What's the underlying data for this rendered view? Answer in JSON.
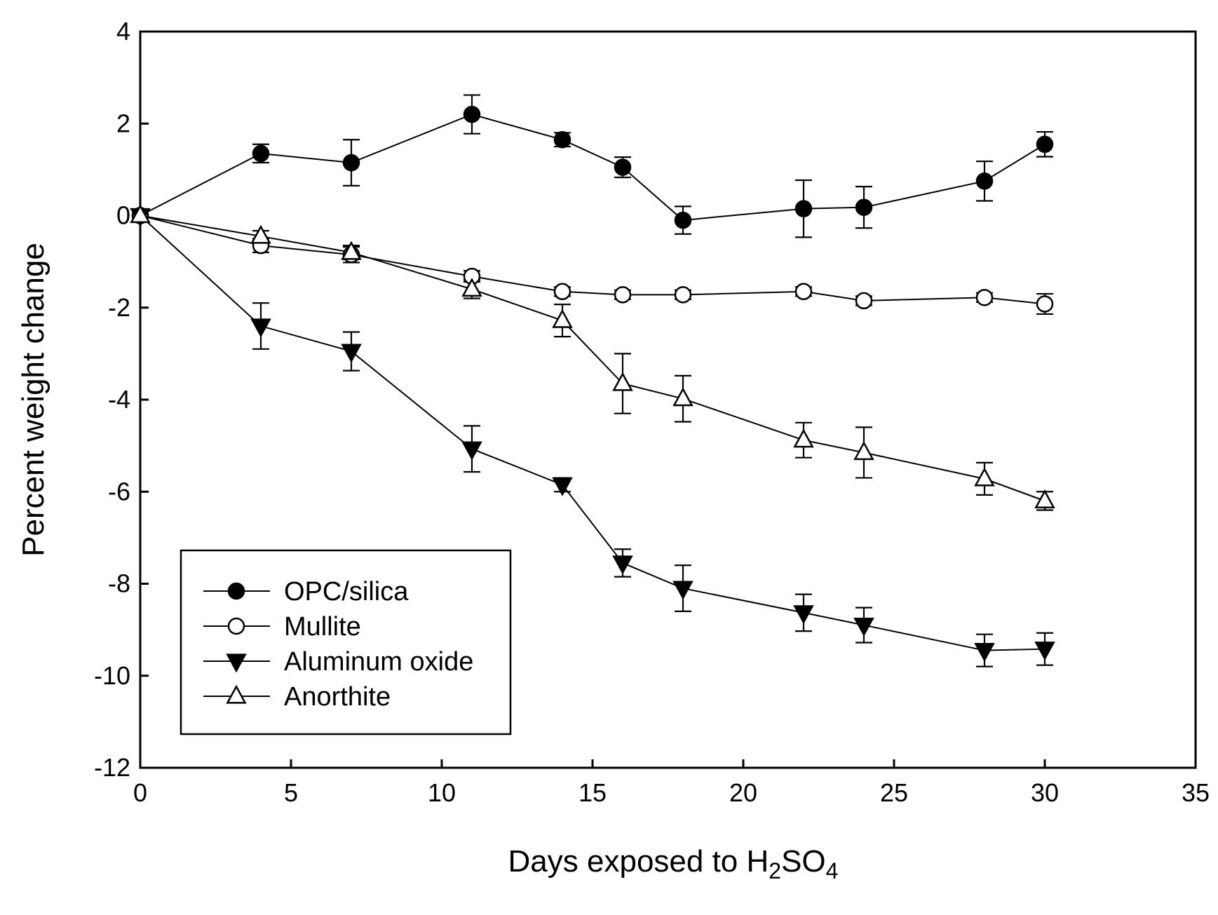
{
  "chart_data": {
    "type": "line",
    "title": "",
    "xlabel": {
      "main": "Days exposed to H",
      "sub1": "2",
      "mid": "SO",
      "sub2": "4"
    },
    "ylabel": "Percent weight change",
    "xlim": [
      0,
      35
    ],
    "ylim": [
      -12,
      4
    ],
    "xticks": [
      0,
      5,
      10,
      15,
      20,
      25,
      30,
      35
    ],
    "yticks": [
      4,
      2,
      0,
      -2,
      -4,
      -6,
      -8,
      -10,
      -12
    ],
    "grid": false,
    "legend_position": "bottom-left",
    "series": [
      {
        "name": "OPC/silica",
        "marker": "circle-filled",
        "points": [
          {
            "x": 0,
            "y": 0,
            "err": 0
          },
          {
            "x": 4,
            "y": 1.35,
            "err": 0.2
          },
          {
            "x": 7,
            "y": 1.15,
            "err": 0.5
          },
          {
            "x": 11,
            "y": 2.2,
            "err": 0.42
          },
          {
            "x": 14,
            "y": 1.65,
            "err": 0.15
          },
          {
            "x": 16,
            "y": 1.05,
            "err": 0.22
          },
          {
            "x": 18,
            "y": -0.1,
            "err": 0.3
          },
          {
            "x": 22,
            "y": 0.15,
            "err": 0.62
          },
          {
            "x": 24,
            "y": 0.18,
            "err": 0.45
          },
          {
            "x": 28,
            "y": 0.75,
            "err": 0.43
          },
          {
            "x": 30,
            "y": 1.55,
            "err": 0.27
          }
        ]
      },
      {
        "name": "Mullite",
        "marker": "circle-open",
        "points": [
          {
            "x": 0,
            "y": 0,
            "err": 0
          },
          {
            "x": 4,
            "y": -0.65,
            "err": 0.15
          },
          {
            "x": 7,
            "y": -0.85,
            "err": 0.17
          },
          {
            "x": 11,
            "y": -1.32,
            "err": 0.12
          },
          {
            "x": 14,
            "y": -1.65,
            "err": 0.1
          },
          {
            "x": 16,
            "y": -1.72,
            "err": 0.1
          },
          {
            "x": 18,
            "y": -1.72,
            "err": 0.1
          },
          {
            "x": 22,
            "y": -1.65,
            "err": 0.1
          },
          {
            "x": 24,
            "y": -1.85,
            "err": 0.1
          },
          {
            "x": 28,
            "y": -1.78,
            "err": 0.1
          },
          {
            "x": 30,
            "y": -1.92,
            "err": 0.22
          }
        ]
      },
      {
        "name": "Aluminum oxide",
        "marker": "triangle-down-filled",
        "points": [
          {
            "x": 0,
            "y": 0,
            "err": 0
          },
          {
            "x": 4,
            "y": -2.4,
            "err": 0.5
          },
          {
            "x": 7,
            "y": -2.95,
            "err": 0.42
          },
          {
            "x": 11,
            "y": -5.07,
            "err": 0.5
          },
          {
            "x": 14,
            "y": -5.85,
            "err": 0.15
          },
          {
            "x": 16,
            "y": -7.55,
            "err": 0.3
          },
          {
            "x": 18,
            "y": -8.1,
            "err": 0.5
          },
          {
            "x": 22,
            "y": -8.63,
            "err": 0.4
          },
          {
            "x": 24,
            "y": -8.9,
            "err": 0.38
          },
          {
            "x": 28,
            "y": -9.45,
            "err": 0.35
          },
          {
            "x": 30,
            "y": -9.42,
            "err": 0.35
          }
        ]
      },
      {
        "name": "Anorthite",
        "marker": "triangle-up-open",
        "points": [
          {
            "x": 0,
            "y": 0,
            "err": 0
          },
          {
            "x": 4,
            "y": -0.45,
            "err": 0.12
          },
          {
            "x": 7,
            "y": -0.8,
            "err": 0.15
          },
          {
            "x": 11,
            "y": -1.6,
            "err": 0.2
          },
          {
            "x": 14,
            "y": -2.28,
            "err": 0.35
          },
          {
            "x": 16,
            "y": -3.65,
            "err": 0.65
          },
          {
            "x": 18,
            "y": -3.98,
            "err": 0.5
          },
          {
            "x": 22,
            "y": -4.88,
            "err": 0.38
          },
          {
            "x": 24,
            "y": -5.15,
            "err": 0.55
          },
          {
            "x": 28,
            "y": -5.72,
            "err": 0.35
          },
          {
            "x": 30,
            "y": -6.2,
            "err": 0.2
          }
        ]
      }
    ]
  }
}
